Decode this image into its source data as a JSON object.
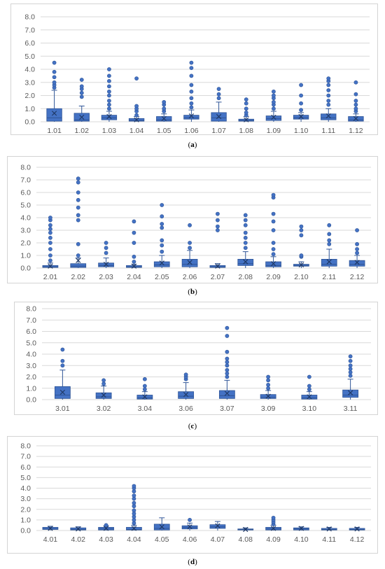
{
  "colors": {
    "box": "#4472c4",
    "outline": "#2f5597",
    "grid": "#d9d9d9",
    "text": "#595959"
  },
  "chart_data": [
    {
      "type": "box",
      "caption": "a",
      "ylim": [
        0,
        8
      ],
      "yticks": [
        "0.0",
        "1.0",
        "2.0",
        "3.0",
        "4.0",
        "5.0",
        "6.0",
        "7.0",
        "8.0"
      ],
      "grid": true,
      "categories": [
        "1.01",
        "1.02",
        "1.03",
        "1.04",
        "1.05",
        "1.06",
        "1.07",
        "1.08",
        "1.09",
        "1.10",
        "1.11",
        "1.12"
      ],
      "boxes": [
        {
          "q1": 0.05,
          "median": 0.3,
          "q3": 1.0,
          "mean": 0.65,
          "lo": 0.0,
          "hi": 2.4,
          "outliers": [
            2.6,
            2.8,
            3.0,
            3.4,
            3.8,
            4.5
          ]
        },
        {
          "q1": 0.05,
          "median": 0.15,
          "q3": 0.65,
          "mean": 0.35,
          "lo": 0.0,
          "hi": 1.2,
          "outliers": [
            1.9,
            2.2,
            2.5,
            2.7,
            3.2
          ]
        },
        {
          "q1": 0.15,
          "median": 0.3,
          "q3": 0.5,
          "mean": 0.4,
          "lo": 0.0,
          "hi": 0.8,
          "outliers": [
            1.0,
            1.3,
            1.6,
            2.0,
            2.3,
            2.7,
            3.1,
            3.5,
            4.0
          ]
        },
        {
          "q1": 0.05,
          "median": 0.1,
          "q3": 0.25,
          "mean": 0.15,
          "lo": 0.0,
          "hi": 0.4,
          "outliers": [
            0.5,
            0.8,
            1.0,
            1.2,
            3.3
          ]
        },
        {
          "q1": 0.05,
          "median": 0.15,
          "q3": 0.4,
          "mean": 0.25,
          "lo": 0.0,
          "hi": 0.6,
          "outliers": [
            0.8,
            1.0,
            1.3,
            1.5
          ]
        },
        {
          "q1": 0.2,
          "median": 0.3,
          "q3": 0.5,
          "mean": 0.45,
          "lo": 0.0,
          "hi": 0.9,
          "outliers": [
            1.1,
            1.4,
            1.8,
            2.3,
            2.8,
            3.5,
            4.1,
            4.5
          ]
        },
        {
          "q1": 0.05,
          "median": 0.3,
          "q3": 0.7,
          "mean": 0.4,
          "lo": 0.0,
          "hi": 1.5,
          "outliers": [
            1.8,
            2.1,
            2.5
          ]
        },
        {
          "q1": 0.05,
          "median": 0.1,
          "q3": 0.2,
          "mean": 0.15,
          "lo": 0.0,
          "hi": 0.4,
          "outliers": [
            0.5,
            0.7,
            1.0,
            1.4,
            1.7
          ]
        },
        {
          "q1": 0.1,
          "median": 0.25,
          "q3": 0.45,
          "mean": 0.35,
          "lo": 0.0,
          "hi": 0.8,
          "outliers": [
            1.0,
            1.3,
            1.5,
            1.8,
            2.0,
            2.3
          ]
        },
        {
          "q1": 0.2,
          "median": 0.3,
          "q3": 0.5,
          "mean": 0.4,
          "lo": 0.0,
          "hi": 0.7,
          "outliers": [
            0.9,
            1.4,
            2.0,
            2.8
          ]
        },
        {
          "q1": 0.15,
          "median": 0.3,
          "q3": 0.6,
          "mean": 0.45,
          "lo": 0.0,
          "hi": 1.0,
          "outliers": [
            1.3,
            1.6,
            2.0,
            2.4,
            2.8,
            3.1,
            3.3
          ]
        },
        {
          "q1": 0.05,
          "median": 0.15,
          "q3": 0.4,
          "mean": 0.25,
          "lo": 0.0,
          "hi": 0.6,
          "outliers": [
            0.8,
            1.0,
            1.3,
            1.6,
            2.1,
            3.0
          ]
        }
      ]
    },
    {
      "type": "box",
      "caption": "b",
      "ylim": [
        0,
        8
      ],
      "yticks": [
        "0.0",
        "1.0",
        "2.0",
        "3.0",
        "4.0",
        "5.0",
        "6.0",
        "7.0",
        "8.0"
      ],
      "grid": true,
      "categories": [
        "2.01",
        "2.02",
        "2.03",
        "2.04",
        "2.05",
        "2.06",
        "2.07",
        "2.08",
        "2.09",
        "2.10",
        "2.11",
        "2.12"
      ],
      "boxes": [
        {
          "q1": 0.05,
          "median": 0.1,
          "q3": 0.2,
          "mean": 0.15,
          "lo": 0.0,
          "hi": 0.4,
          "outliers": [
            0.6,
            1.0,
            1.5,
            2.0,
            2.4,
            2.8,
            3.1,
            3.4,
            3.8,
            4.0
          ]
        },
        {
          "q1": 0.05,
          "median": 0.15,
          "q3": 0.35,
          "mean": 0.6,
          "lo": 0.0,
          "hi": 0.8,
          "outliers": [
            1.0,
            1.9,
            3.8,
            4.2,
            4.8,
            5.4,
            6.0,
            6.8,
            7.1
          ]
        },
        {
          "q1": 0.1,
          "median": 0.2,
          "q3": 0.4,
          "mean": 0.3,
          "lo": 0.0,
          "hi": 0.8,
          "outliers": [
            1.2,
            1.6,
            2.0
          ]
        },
        {
          "q1": 0.05,
          "median": 0.1,
          "q3": 0.2,
          "mean": 0.15,
          "lo": 0.0,
          "hi": 0.3,
          "outliers": [
            0.5,
            0.9,
            2.0,
            2.8,
            3.7
          ]
        },
        {
          "q1": 0.1,
          "median": 0.25,
          "q3": 0.5,
          "mean": 0.4,
          "lo": 0.0,
          "hi": 1.0,
          "outliers": [
            1.3,
            1.8,
            2.2,
            3.2,
            3.5,
            4.1,
            5.0
          ]
        },
        {
          "q1": 0.1,
          "median": 0.3,
          "q3": 0.7,
          "mean": 0.45,
          "lo": 0.0,
          "hi": 1.4,
          "outliers": [
            1.6,
            2.0,
            3.4
          ]
        },
        {
          "q1": 0.05,
          "median": 0.1,
          "q3": 0.2,
          "mean": 0.15,
          "lo": 0.0,
          "hi": 0.35,
          "outliers": [
            3.0,
            3.3,
            3.8,
            4.3
          ]
        },
        {
          "q1": 0.2,
          "median": 0.35,
          "q3": 0.7,
          "mean": 0.5,
          "lo": 0.0,
          "hi": 1.3,
          "outliers": [
            1.6,
            2.0,
            2.4,
            2.8,
            3.4,
            3.8,
            4.2
          ]
        },
        {
          "q1": 0.1,
          "median": 0.2,
          "q3": 0.5,
          "mean": 0.35,
          "lo": 0.0,
          "hi": 0.9,
          "outliers": [
            1.1,
            1.5,
            2.0,
            3.0,
            3.7,
            4.3,
            5.6,
            5.8
          ]
        },
        {
          "q1": 0.15,
          "median": 0.2,
          "q3": 0.3,
          "mean": 0.25,
          "lo": 0.0,
          "hi": 0.5,
          "outliers": [
            0.9,
            1.0,
            2.6,
            3.0,
            3.3
          ]
        },
        {
          "q1": 0.15,
          "median": 0.3,
          "q3": 0.7,
          "mean": 0.5,
          "lo": 0.0,
          "hi": 1.5,
          "outliers": [
            1.9,
            2.2,
            2.7,
            3.4
          ]
        },
        {
          "q1": 0.15,
          "median": 0.3,
          "q3": 0.6,
          "mean": 0.45,
          "lo": 0.0,
          "hi": 1.0,
          "outliers": [
            1.2,
            1.5,
            1.9,
            3.0
          ]
        }
      ]
    },
    {
      "type": "box",
      "caption": "c",
      "ylim": [
        0,
        8
      ],
      "yticks": [
        "0.0",
        "1.0",
        "2.0",
        "3.0",
        "4.0",
        "5.0",
        "6.0",
        "7.0",
        "8.0"
      ],
      "grid": true,
      "categories": [
        "3.01",
        "3.02",
        "3.04",
        "3.06",
        "3.07",
        "3.09",
        "3.10",
        "3.11"
      ],
      "boxes": [
        {
          "q1": 0.1,
          "median": 0.4,
          "q3": 1.15,
          "mean": 0.65,
          "lo": 0.0,
          "hi": 2.6,
          "outliers": [
            3.0,
            3.4,
            4.4
          ]
        },
        {
          "q1": 0.1,
          "median": 0.25,
          "q3": 0.6,
          "mean": 0.4,
          "lo": 0.0,
          "hi": 1.2,
          "outliers": [
            1.4,
            1.7
          ]
        },
        {
          "q1": 0.05,
          "median": 0.15,
          "q3": 0.4,
          "mean": 0.25,
          "lo": 0.0,
          "hi": 0.7,
          "outliers": [
            0.9,
            1.2,
            1.8
          ]
        },
        {
          "q1": 0.1,
          "median": 0.3,
          "q3": 0.7,
          "mean": 0.45,
          "lo": 0.0,
          "hi": 1.5,
          "outliers": [
            1.8,
            2.0,
            2.2
          ]
        },
        {
          "q1": 0.1,
          "median": 0.35,
          "q3": 0.8,
          "mean": 0.55,
          "lo": 0.0,
          "hi": 1.7,
          "outliers": [
            2.0,
            2.3,
            2.6,
            3.0,
            3.3,
            3.6,
            4.2,
            5.6,
            6.3
          ]
        },
        {
          "q1": 0.1,
          "median": 0.2,
          "q3": 0.45,
          "mean": 0.3,
          "lo": 0.0,
          "hi": 0.8,
          "outliers": [
            1.0,
            1.3,
            1.7,
            2.0
          ]
        },
        {
          "q1": 0.05,
          "median": 0.15,
          "q3": 0.4,
          "mean": 0.25,
          "lo": 0.0,
          "hi": 0.7,
          "outliers": [
            0.9,
            1.2,
            2.0
          ]
        },
        {
          "q1": 0.2,
          "median": 0.4,
          "q3": 0.85,
          "mean": 0.6,
          "lo": 0.0,
          "hi": 1.8,
          "outliers": [
            2.1,
            2.4,
            2.7,
            3.0,
            3.4,
            3.8
          ]
        }
      ]
    },
    {
      "type": "box",
      "caption": "d",
      "ylim": [
        0,
        8
      ],
      "yticks": [
        "0.0",
        "1.0",
        "2.0",
        "3.0",
        "4.0",
        "5.0",
        "6.0",
        "7.0",
        "8.0"
      ],
      "grid": true,
      "categories": [
        "4.01",
        "4.02",
        "4.03",
        "4.04",
        "4.05",
        "4.06",
        "4.07",
        "4.08",
        "4.09",
        "4.10",
        "4.11",
        "4.12"
      ],
      "boxes": [
        {
          "q1": 0.1,
          "median": 0.15,
          "q3": 0.3,
          "mean": 0.2,
          "lo": 0.0,
          "hi": 0.4,
          "outliers": []
        },
        {
          "q1": 0.05,
          "median": 0.1,
          "q3": 0.25,
          "mean": 0.15,
          "lo": 0.0,
          "hi": 0.35,
          "outliers": []
        },
        {
          "q1": 0.05,
          "median": 0.15,
          "q3": 0.3,
          "mean": 0.2,
          "lo": 0.0,
          "hi": 0.45,
          "outliers": [
            0.5
          ]
        },
        {
          "q1": 0.05,
          "median": 0.1,
          "q3": 0.3,
          "mean": 0.2,
          "lo": 0.0,
          "hi": 0.5,
          "outliers": [
            0.7,
            1.0,
            1.3,
            1.6,
            1.9,
            2.3,
            2.6,
            3.0,
            3.3,
            3.7,
            4.0,
            4.2
          ]
        },
        {
          "q1": 0.05,
          "median": 0.2,
          "q3": 0.6,
          "mean": 0.35,
          "lo": 0.0,
          "hi": 1.2,
          "outliers": []
        },
        {
          "q1": 0.15,
          "median": 0.3,
          "q3": 0.45,
          "mean": 0.35,
          "lo": 0.0,
          "hi": 0.7,
          "outliers": [
            1.0
          ]
        },
        {
          "q1": 0.2,
          "median": 0.35,
          "q3": 0.55,
          "mean": 0.45,
          "lo": 0.0,
          "hi": 0.85,
          "outliers": []
        },
        {
          "q1": 0.05,
          "median": 0.1,
          "q3": 0.15,
          "mean": 0.1,
          "lo": 0.0,
          "hi": 0.25,
          "outliers": []
        },
        {
          "q1": 0.05,
          "median": 0.15,
          "q3": 0.3,
          "mean": 0.2,
          "lo": 0.0,
          "hi": 0.5,
          "outliers": [
            0.6,
            0.8,
            1.0,
            1.2
          ]
        },
        {
          "q1": 0.05,
          "median": 0.15,
          "q3": 0.25,
          "mean": 0.2,
          "lo": 0.0,
          "hi": 0.35,
          "outliers": []
        },
        {
          "q1": 0.05,
          "median": 0.1,
          "q3": 0.2,
          "mean": 0.15,
          "lo": 0.0,
          "hi": 0.3,
          "outliers": []
        },
        {
          "q1": 0.05,
          "median": 0.1,
          "q3": 0.2,
          "mean": 0.15,
          "lo": 0.0,
          "hi": 0.3,
          "outliers": []
        }
      ]
    }
  ]
}
